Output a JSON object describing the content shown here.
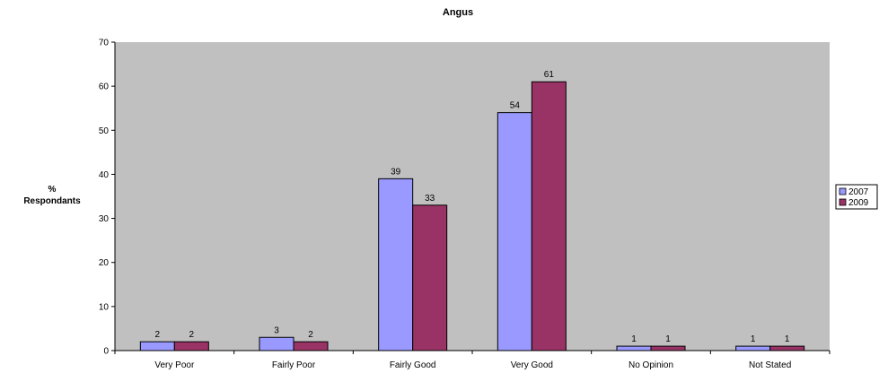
{
  "chart_data": {
    "type": "bar",
    "title": "Angus",
    "xlabel": "",
    "ylabel": [
      "%",
      "Respondants"
    ],
    "ylim": [
      0,
      70
    ],
    "yticks": [
      0,
      10,
      20,
      30,
      40,
      50,
      60,
      70
    ],
    "categories": [
      "Very Poor",
      "Fairly Poor",
      "Fairly Good",
      "Very Good",
      "No Opinion",
      "Not Stated"
    ],
    "series": [
      {
        "name": "2007",
        "color": "#9999FF",
        "values": [
          2,
          3,
          39,
          54,
          1,
          1
        ]
      },
      {
        "name": "2009",
        "color": "#993366",
        "values": [
          2,
          2,
          33,
          61,
          1,
          1
        ]
      }
    ],
    "plot_background": "#C0C0C0",
    "grid": false,
    "legend_position": "right"
  }
}
